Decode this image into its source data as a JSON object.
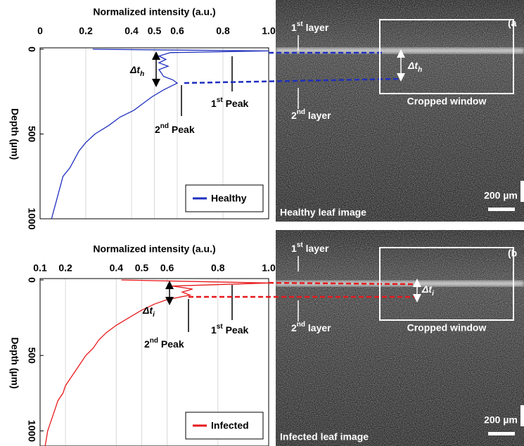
{
  "chart_data": [
    {
      "type": "line",
      "title": "Normalized intensity (a.u.)",
      "y_label": "Depth (µm)",
      "xlim": [
        0,
        1
      ],
      "xticks": [
        0,
        0.2,
        0.4,
        0.5,
        0.6,
        0.8,
        {
          "value": 1,
          "label": "1.0"
        }
      ],
      "ylim": [
        0,
        1000
      ],
      "yticks": [
        0,
        500,
        1000
      ],
      "y_inverted": true,
      "grid": true,
      "legend": "lower right",
      "depth": [
        0,
        10,
        20,
        40,
        60,
        80,
        100,
        120,
        140,
        160,
        180,
        200,
        240,
        280,
        320,
        360,
        400,
        450,
        500,
        550,
        600,
        650,
        700,
        750,
        800,
        850,
        900,
        950,
        1000
      ],
      "series": [
        {
          "name": "Healthy",
          "color": "#1f2fbf",
          "values": [
            0.23,
            1.0,
            0.57,
            0.52,
            0.55,
            0.52,
            0.56,
            0.52,
            0.53,
            0.54,
            0.58,
            0.6,
            0.54,
            0.49,
            0.45,
            0.41,
            0.35,
            0.3,
            0.24,
            0.2,
            0.17,
            0.15,
            0.13,
            0.1,
            0.09,
            0.08,
            0.07,
            0.06,
            0.05
          ]
        }
      ],
      "annotations": {
        "delta": [
          "Δt",
          "h"
        ],
        "first_peak": [
          "1",
          "st",
          " Peak"
        ],
        "second_peak": [
          "2",
          "nd",
          " Peak"
        ]
      },
      "image": {
        "panel": "(a",
        "first_layer": [
          "1",
          "st",
          " layer"
        ],
        "second_layer": [
          "2",
          "nd",
          " layer"
        ],
        "window": "Cropped window",
        "scale": "200 µm",
        "caption": "Healthy leaf image",
        "delta": [
          "Δt",
          "h"
        ]
      }
    },
    {
      "type": "line",
      "title": "Normalized intensity (a.u.)",
      "y_label": "Depth (µm)",
      "xlim": [
        0.1,
        1
      ],
      "xticks": [
        0.1,
        0.2,
        0.4,
        0.5,
        0.6,
        0.8,
        {
          "value": 1,
          "label": "1.0"
        }
      ],
      "ylim": [
        0,
        1100
      ],
      "yticks": [
        0,
        500,
        1000
      ],
      "y_inverted": true,
      "grid": true,
      "legend": "lower right",
      "depth": [
        0,
        20,
        40,
        60,
        80,
        100,
        130,
        160,
        200,
        250,
        300,
        350,
        400,
        450,
        500,
        550,
        600,
        650,
        700,
        750,
        800,
        850,
        900,
        950,
        1000,
        1100
      ],
      "series": [
        {
          "name": "Infected",
          "color": "#e8191c",
          "values": [
            0.42,
            1.0,
            0.62,
            0.7,
            0.66,
            0.69,
            0.6,
            0.55,
            0.5,
            0.45,
            0.4,
            0.36,
            0.33,
            0.31,
            0.28,
            0.26,
            0.24,
            0.22,
            0.2,
            0.19,
            0.17,
            0.16,
            0.15,
            0.14,
            0.13,
            0.12
          ]
        }
      ],
      "annotations": {
        "delta": [
          "Δt",
          "i"
        ],
        "first_peak": [
          "1",
          "st",
          " Peak"
        ],
        "second_peak": [
          "2",
          "nd",
          " Peak"
        ]
      },
      "image": {
        "panel": "(b",
        "first_layer": [
          "1",
          "st",
          " layer"
        ],
        "second_layer": [
          "2",
          "nd",
          " layer"
        ],
        "window": "Cropped window",
        "scale": "200 µm",
        "caption": "Infected leaf image",
        "delta": [
          "Δt",
          "i"
        ]
      }
    }
  ]
}
